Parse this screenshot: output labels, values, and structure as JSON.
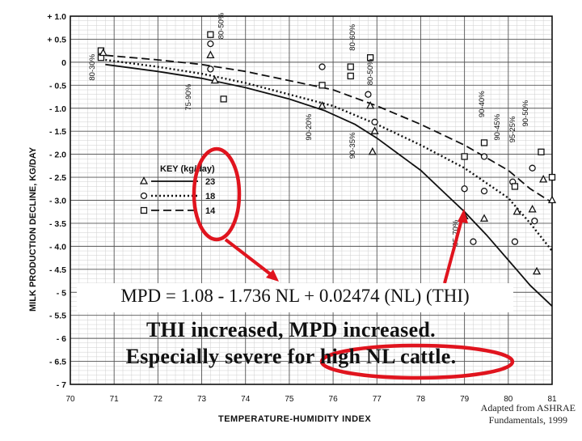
{
  "chart_data": {
    "type": "line",
    "xlabel": "TEMPERATURE-HUMIDITY INDEX",
    "ylabel": "MILK PRODUCTION DECLINE, KG/DAY",
    "xlim": [
      70,
      81
    ],
    "ylim": [
      -7,
      1
    ],
    "x_ticks": [
      "70",
      "71",
      "72",
      "73",
      "74",
      "75",
      "76",
      "77",
      "78",
      "79",
      "80",
      "81"
    ],
    "y_ticks": [
      "+ 1.0",
      "+ 0.5",
      "0",
      "- 0.5",
      "- 1.0",
      "- 1.5",
      "- 2.0",
      "- 2.5",
      "- 3.0",
      "- 3.5",
      "- 4.0",
      "- 4.5",
      "- 5",
      "- 5.5",
      "- 6",
      "- 6.5",
      "- 7"
    ],
    "grid": true,
    "legend": {
      "title": "KEY (kg/day)",
      "placement": "middle-left",
      "entries": [
        {
          "marker": "triangle",
          "label": "23",
          "dash": "solid"
        },
        {
          "marker": "circle",
          "label": "18",
          "dash": "dotted"
        },
        {
          "marker": "square",
          "label": "14",
          "dash": "dashed"
        }
      ]
    },
    "series": [
      {
        "marker": "triangle",
        "dash": "solid",
        "x": [
          70.8,
          72.0,
          73.0,
          74.0,
          75.0,
          75.8,
          76.5,
          77.0,
          77.5,
          78.0,
          78.5,
          79.0,
          79.5,
          80.0,
          80.5,
          81.0
        ],
        "y": [
          -0.05,
          -0.2,
          -0.35,
          -0.55,
          -0.8,
          -1.05,
          -1.35,
          -1.65,
          -2.0,
          -2.35,
          -2.8,
          -3.25,
          -3.75,
          -4.3,
          -4.85,
          -5.3
        ]
      },
      {
        "marker": "circle",
        "dash": "dotted",
        "x": [
          70.8,
          72.0,
          73.0,
          74.0,
          75.0,
          76.0,
          77.0,
          78.0,
          79.0,
          80.0,
          80.5,
          81.0
        ],
        "y": [
          0.05,
          -0.1,
          -0.25,
          -0.45,
          -0.7,
          -0.95,
          -1.35,
          -1.8,
          -2.3,
          -2.95,
          -3.5,
          -4.1
        ]
      },
      {
        "marker": "square",
        "dash": "dashed",
        "x": [
          70.8,
          72.0,
          73.0,
          74.0,
          75.0,
          76.0,
          77.0,
          78.0,
          79.0,
          80.0,
          80.5,
          81.0
        ],
        "y": [
          0.15,
          0.05,
          -0.05,
          -0.2,
          -0.4,
          -0.6,
          -0.95,
          -1.35,
          -1.8,
          -2.35,
          -2.75,
          -3.05
        ]
      }
    ],
    "points": [
      {
        "marker": "square",
        "x": 70.7,
        "y": 0.25
      },
      {
        "marker": "square",
        "x": 70.7,
        "y": 0.1
      },
      {
        "marker": "triangle",
        "x": 70.75,
        "y": 0.2
      },
      {
        "marker": "circle",
        "x": 73.2,
        "y": 0.4
      },
      {
        "marker": "square",
        "x": 73.2,
        "y": 0.6
      },
      {
        "marker": "triangle",
        "x": 73.2,
        "y": 0.15
      },
      {
        "marker": "circle",
        "x": 73.2,
        "y": -0.15
      },
      {
        "marker": "triangle",
        "x": 73.3,
        "y": -0.4
      },
      {
        "marker": "square",
        "x": 73.5,
        "y": -0.8
      },
      {
        "marker": "circle",
        "x": 75.75,
        "y": -0.1
      },
      {
        "marker": "square",
        "x": 75.75,
        "y": -0.5
      },
      {
        "marker": "triangle",
        "x": 75.75,
        "y": -0.95
      },
      {
        "marker": "square",
        "x": 76.4,
        "y": -0.1
      },
      {
        "marker": "square",
        "x": 76.4,
        "y": -0.3
      },
      {
        "marker": "circle",
        "x": 76.8,
        "y": -0.7
      },
      {
        "marker": "square",
        "x": 76.85,
        "y": 0.1
      },
      {
        "marker": "triangle",
        "x": 76.85,
        "y": -0.95
      },
      {
        "marker": "circle",
        "x": 76.95,
        "y": -1.3
      },
      {
        "marker": "triangle",
        "x": 76.95,
        "y": -1.5
      },
      {
        "marker": "triangle",
        "x": 76.9,
        "y": -1.95
      },
      {
        "marker": "square",
        "x": 79.0,
        "y": -2.05
      },
      {
        "marker": "circle",
        "x": 79.0,
        "y": -2.75
      },
      {
        "marker": "triangle",
        "x": 79.0,
        "y": -3.35
      },
      {
        "marker": "circle",
        "x": 79.2,
        "y": -3.9
      },
      {
        "marker": "square",
        "x": 79.45,
        "y": -1.75
      },
      {
        "marker": "circle",
        "x": 79.45,
        "y": -2.05
      },
      {
        "marker": "circle",
        "x": 79.45,
        "y": -2.8
      },
      {
        "marker": "triangle",
        "x": 79.45,
        "y": -3.4
      },
      {
        "marker": "circle",
        "x": 80.1,
        "y": -2.6
      },
      {
        "marker": "square",
        "x": 80.15,
        "y": -2.7
      },
      {
        "marker": "triangle",
        "x": 80.2,
        "y": -3.25
      },
      {
        "marker": "circle",
        "x": 80.15,
        "y": -3.9
      },
      {
        "marker": "circle",
        "x": 80.55,
        "y": -2.3
      },
      {
        "marker": "triangle",
        "x": 80.55,
        "y": -3.2
      },
      {
        "marker": "circle",
        "x": 80.6,
        "y": -3.45
      },
      {
        "marker": "triangle",
        "x": 80.65,
        "y": -4.55
      },
      {
        "marker": "square",
        "x": 80.75,
        "y": -1.95
      },
      {
        "marker": "triangle",
        "x": 80.8,
        "y": -2.55
      },
      {
        "marker": "square",
        "x": 81.0,
        "y": -2.5
      },
      {
        "marker": "triangle",
        "x": 81.0,
        "y": -3.0
      }
    ],
    "annotations": [
      {
        "text": "80-30%",
        "x": 70.55,
        "y": -0.4
      },
      {
        "text": "75-90%",
        "x": 72.75,
        "y": -1.05
      },
      {
        "text": "80-50%",
        "x": 73.5,
        "y": 0.5
      },
      {
        "text": "80-60%",
        "x": 76.5,
        "y": 0.25
      },
      {
        "text": "80-50%",
        "x": 76.9,
        "y": -0.5
      },
      {
        "text": "90-20%",
        "x": 75.5,
        "y": -1.7
      },
      {
        "text": "90-35%",
        "x": 76.5,
        "y": -2.1
      },
      {
        "text": "65-70%",
        "x": 78.85,
        "y": -4.0
      },
      {
        "text": "90-40%",
        "x": 79.45,
        "y": -1.2
      },
      {
        "text": "90-45%",
        "x": 79.8,
        "y": -1.7
      },
      {
        "text": "95-25%",
        "x": 80.15,
        "y": -1.75
      },
      {
        "text": "90-50%",
        "x": 80.45,
        "y": -1.4
      }
    ]
  },
  "overlay": {
    "equation": "MPD = 1.08 - 1.736 NL + 0.02474 (NL) (THI)",
    "line1": "THI  increased, MPD increased.",
    "line2": "Especially severe for high NL cattle.",
    "credit_line1": "Adapted from ASHRAE",
    "credit_line2": "Fundamentals, 1999",
    "highlight_color": "#e0141e"
  }
}
